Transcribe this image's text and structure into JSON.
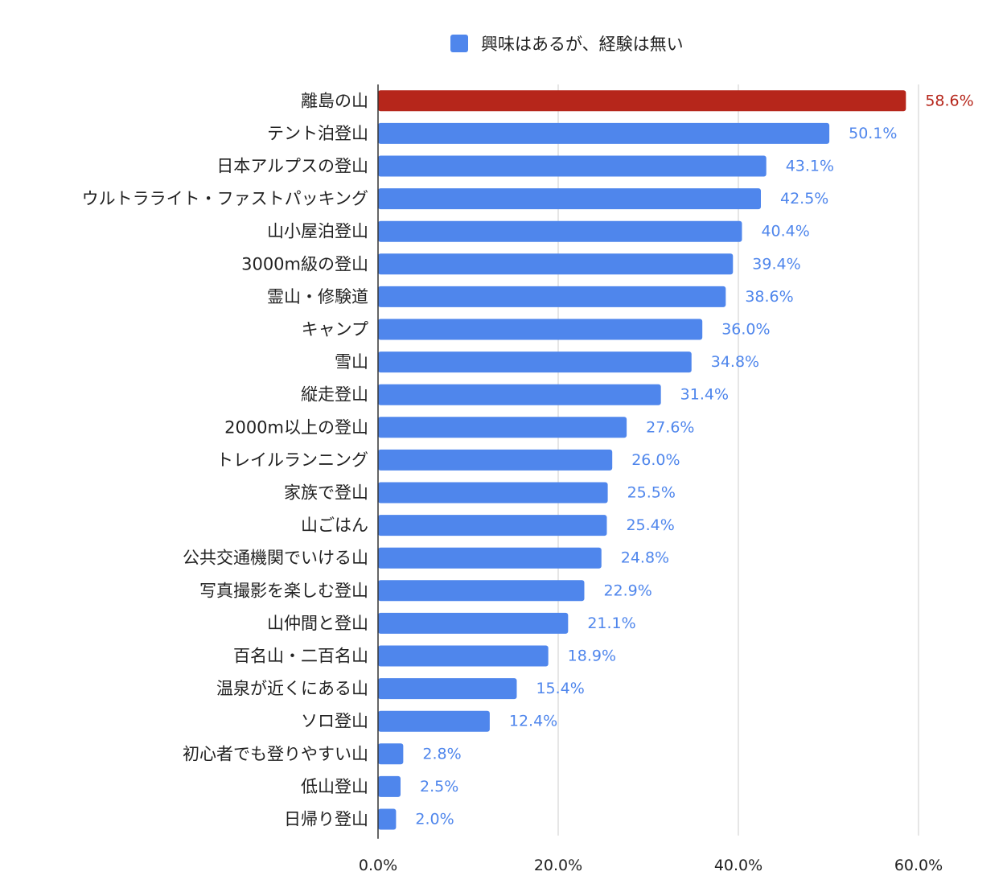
{
  "chart_data": {
    "type": "bar",
    "orientation": "horizontal",
    "legend": {
      "position": "top",
      "label": "興味はあるが、経験は無い"
    },
    "categories": [
      "離島の山",
      "テント泊登山",
      "日本アルプスの登山",
      "ウルトラライト・ファストパッキング",
      "山小屋泊登山",
      "3000m級の登山",
      "霊山・修験道",
      "キャンプ",
      "雪山",
      "縦走登山",
      "2000m以上の登山",
      "トレイルランニング",
      "家族で登山",
      "山ごはん",
      "公共交通機関でいける山",
      "写真撮影を楽しむ登山",
      "山仲間と登山",
      "百名山・二百名山",
      "温泉が近くにある山",
      "ソロ登山",
      "初心者でも登りやすい山",
      "低山登山",
      "日帰り登山"
    ],
    "values": [
      58.6,
      50.1,
      43.1,
      42.5,
      40.4,
      39.4,
      38.6,
      36.0,
      34.8,
      31.4,
      27.6,
      26.0,
      25.5,
      25.4,
      24.8,
      22.9,
      21.1,
      18.9,
      15.4,
      12.4,
      2.8,
      2.5,
      2.0
    ],
    "value_labels": [
      "58.6%",
      "50.1%",
      "43.1%",
      "42.5%",
      "40.4%",
      "39.4%",
      "38.6%",
      "36.0%",
      "34.8%",
      "31.4%",
      "27.6%",
      "26.0%",
      "25.5%",
      "25.4%",
      "24.8%",
      "22.9%",
      "21.1%",
      "18.9%",
      "15.4%",
      "12.4%",
      "2.8%",
      "2.5%",
      "2.0%"
    ],
    "xlim": [
      0,
      60
    ],
    "x_ticks": [
      0,
      20,
      40,
      60
    ],
    "x_tick_labels": [
      "0.0%",
      "20.0%",
      "40.0%",
      "60.0%"
    ],
    "grid": true,
    "colors": {
      "bar": "#4f86ec",
      "highlight_bar": "#b6261b",
      "label": "#4f86ec",
      "highlight_label": "#b6261b",
      "grid": "#cccccc",
      "axis": "#333333",
      "text": "#222222"
    },
    "highlight_index": 0
  }
}
